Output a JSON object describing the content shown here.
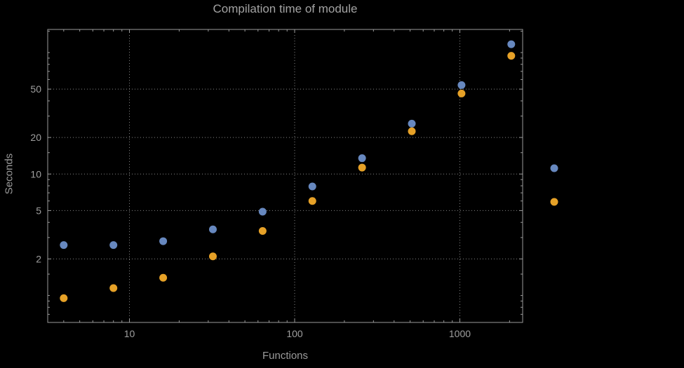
{
  "chart_data": {
    "type": "scatter",
    "title": "Compilation time of module",
    "xlabel": "Functions",
    "ylabel": "Seconds",
    "x_scale": "log",
    "y_scale": "log",
    "xlim": [
      3.2,
      2400
    ],
    "ylim": [
      0.6,
      155
    ],
    "grid": true,
    "x_ticks": [
      {
        "value": 10,
        "label": "10"
      },
      {
        "value": 100,
        "label": "100"
      },
      {
        "value": 1000,
        "label": "1000"
      }
    ],
    "y_ticks": [
      {
        "value": 2,
        "label": "2"
      },
      {
        "value": 5,
        "label": "5"
      },
      {
        "value": 10,
        "label": "10"
      },
      {
        "value": 20,
        "label": "20"
      },
      {
        "value": 50,
        "label": "50"
      }
    ],
    "x_minor_ticks": [
      4,
      5,
      6,
      7,
      8,
      9,
      20,
      30,
      40,
      50,
      60,
      70,
      80,
      90,
      200,
      300,
      400,
      500,
      600,
      700,
      800,
      900,
      2000
    ],
    "y_minor_ticks": [
      0.7,
      0.8,
      0.9,
      1,
      1.5,
      3,
      4,
      6,
      7,
      8,
      9,
      15,
      30,
      40,
      60,
      70,
      80,
      90,
      100,
      150
    ],
    "series": [
      {
        "name": "series-1-blue",
        "color": "#6788bf",
        "x": [
          4,
          8,
          16,
          32,
          64,
          128,
          256,
          512,
          1024,
          2048
        ],
        "y": [
          2.6,
          2.6,
          2.8,
          3.5,
          4.9,
          7.9,
          13.5,
          26,
          54,
          117
        ]
      },
      {
        "name": "series-2-orange",
        "color": "#e6a127",
        "x": [
          4,
          8,
          16,
          32,
          64,
          128,
          256,
          512,
          1024,
          2048
        ],
        "y": [
          0.95,
          1.15,
          1.4,
          2.1,
          3.4,
          6.0,
          11.3,
          22.5,
          46,
          94
        ]
      }
    ],
    "legend_markers": [
      {
        "series": "series-1-blue",
        "color": "#6788bf"
      },
      {
        "series": "series-2-orange",
        "color": "#e6a127"
      }
    ],
    "colors": {
      "background": "#000000",
      "frame": "#9a9a9a",
      "grid": "#858585",
      "text": "#9f9f9f"
    }
  }
}
